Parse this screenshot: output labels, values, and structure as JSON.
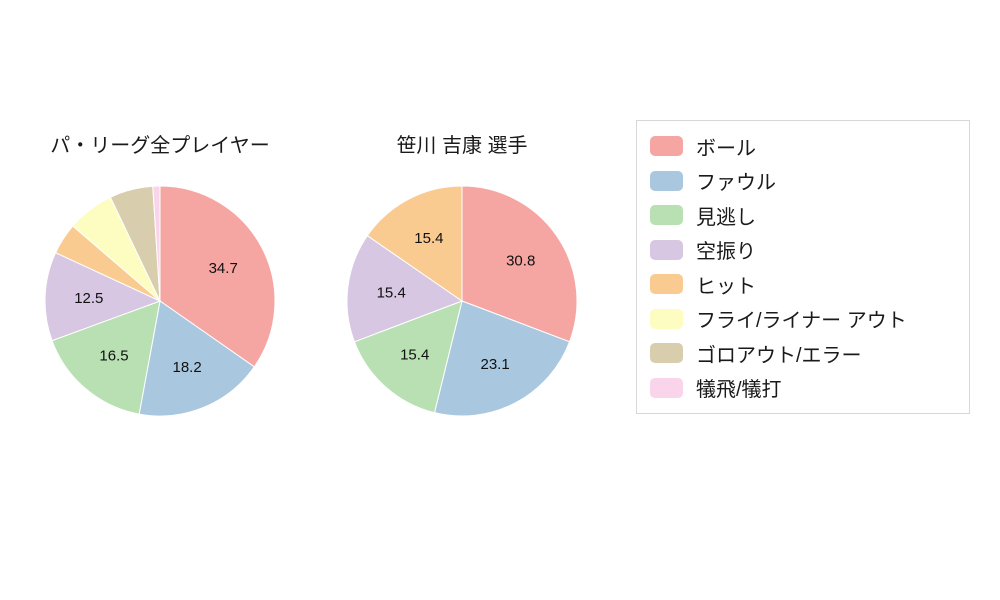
{
  "chart_data": [
    {
      "type": "pie",
      "title": "パ・リーグ全プレイヤー",
      "labels": [
        "ボール",
        "ファウル",
        "見逃し",
        "空振り",
        "ヒット",
        "フライ/ライナー アウト",
        "ゴロアウト/エラー",
        "犠飛/犠打"
      ],
      "values": [
        34.7,
        18.2,
        16.5,
        12.5,
        4.4,
        6.6,
        6.1,
        1.0
      ],
      "value_labels": [
        "34.7",
        "18.2",
        "16.5",
        "12.5",
        "",
        "",
        "",
        ""
      ],
      "colors": [
        "#f6a6a2",
        "#a9c7df",
        "#b8e0b3",
        "#d7c7e2",
        "#facb90",
        "#fdfdc1",
        "#d8ceae",
        "#fad4eb"
      ],
      "start_angle_deg": 0,
      "direction": "clockwise"
    },
    {
      "type": "pie",
      "title": "笹川 吉康  選手",
      "labels": [
        "ボール",
        "ファウル",
        "見逃し",
        "空振り",
        "ヒット"
      ],
      "values": [
        30.8,
        23.1,
        15.4,
        15.4,
        15.4
      ],
      "value_labels": [
        "30.8",
        "23.1",
        "15.4",
        "15.4",
        "15.4"
      ],
      "colors": [
        "#f6a6a2",
        "#a9c7df",
        "#b8e0b3",
        "#d7c7e2",
        "#facb90"
      ],
      "start_angle_deg": 0,
      "direction": "clockwise"
    }
  ],
  "legend": {
    "position": "right",
    "items": [
      {
        "label": "ボール",
        "color": "#f6a6a2"
      },
      {
        "label": "ファウル",
        "color": "#a9c7df"
      },
      {
        "label": "見逃し",
        "color": "#b8e0b3"
      },
      {
        "label": "空振り",
        "color": "#d7c7e2"
      },
      {
        "label": "ヒット",
        "color": "#facb90"
      },
      {
        "label": "フライ/ライナー アウト",
        "color": "#fdfdc1"
      },
      {
        "label": "ゴロアウト/エラー",
        "color": "#d8ceae"
      },
      {
        "label": "犠飛/犠打",
        "color": "#fad4eb"
      }
    ]
  }
}
